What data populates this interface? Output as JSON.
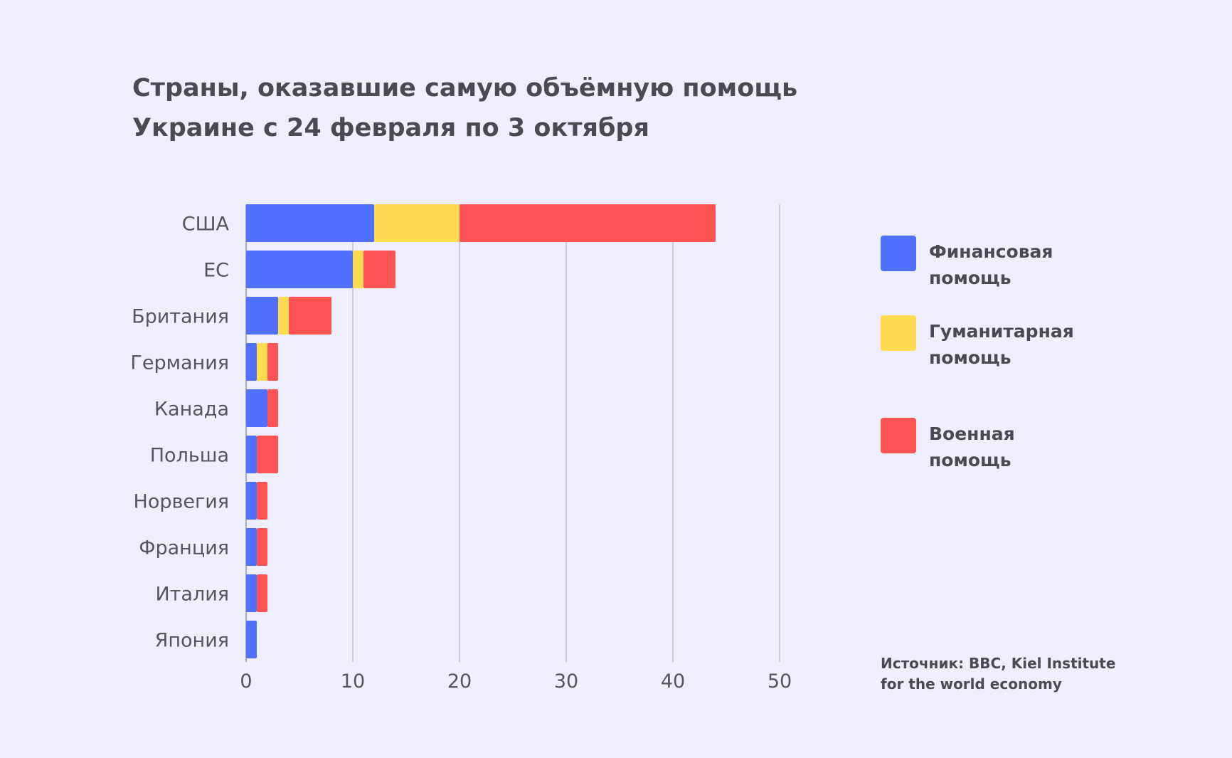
{
  "chart_data": {
    "type": "bar",
    "orientation": "horizontal",
    "stacked": true,
    "title": "Страны, оказавшие самую объёмную помощь Украине с 24 февраля по 3 октября",
    "title_lines": [
      "Страны, оказавшие самую объёмную помощь",
      "Украине с 24 февраля по 3 октября"
    ],
    "categories": [
      "США",
      "ЕС",
      "Британия",
      "Германия",
      "Канада",
      "Польша",
      "Норвегия",
      "Франция",
      "Италия",
      "Япония"
    ],
    "series": [
      {
        "name": "Финансовая помощь",
        "name_lines": [
          "Финансовая",
          "помощь"
        ],
        "color": "#4f6ffc",
        "values": [
          12,
          10,
          3,
          1,
          2,
          1,
          1,
          1,
          1,
          1
        ]
      },
      {
        "name": "Гуманитарная помощь",
        "name_lines": [
          "Гуманитарная",
          "помощь"
        ],
        "color": "#fedb50",
        "values": [
          8,
          1,
          1,
          1,
          0,
          0,
          0,
          0,
          0,
          0
        ]
      },
      {
        "name": "Военная помощь",
        "name_lines": [
          "Военная",
          "помощь"
        ],
        "color": "#fd5354",
        "values": [
          24,
          3,
          4,
          1,
          1,
          2,
          1,
          1,
          1,
          0
        ]
      }
    ],
    "xlim": [
      0,
      50
    ],
    "xticks": [
      "0",
      "10",
      "20",
      "30",
      "40",
      "50"
    ],
    "grid": "vertical",
    "legend": "right",
    "xlabel": "",
    "ylabel": ""
  },
  "source": [
    "Источник: BBC, Kiel Institute",
    "for the world economy"
  ],
  "background": "#efeefc"
}
